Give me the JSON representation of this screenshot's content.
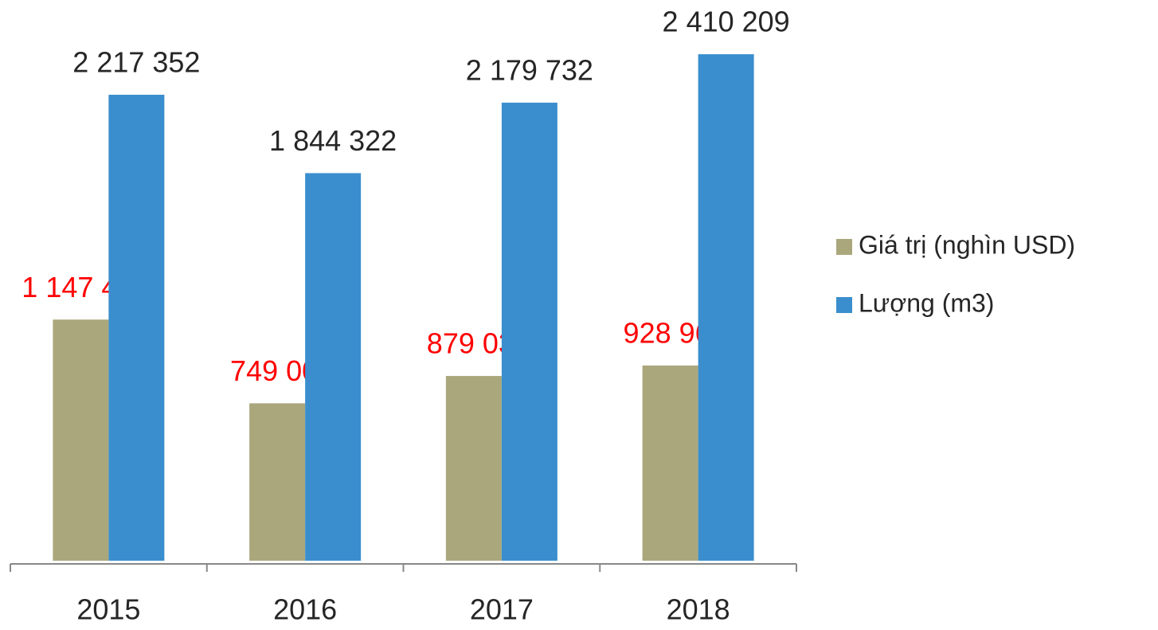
{
  "chart_data": {
    "type": "bar",
    "categories": [
      "2015",
      "2016",
      "2017",
      "2018"
    ],
    "series": [
      {
        "name": "Giá trị (nghìn USD)",
        "color": "#aba77c",
        "label_color": "#ff0000",
        "values": [
          1147462,
          749006,
          879035,
          928967
        ],
        "value_labels": [
          "1 147 462",
          "749 006",
          "879 035",
          "928 967"
        ]
      },
      {
        "name": "Lượng (m3)",
        "color": "#3a8ecd",
        "label_color": "#262626",
        "values": [
          2217352,
          1844322,
          2179732,
          2410209
        ],
        "value_labels": [
          "2 217 352",
          "1 844 322",
          "2 179 732",
          "2 410 209"
        ]
      }
    ],
    "ylim": [
      0,
      2600000
    ],
    "legend": "right"
  }
}
